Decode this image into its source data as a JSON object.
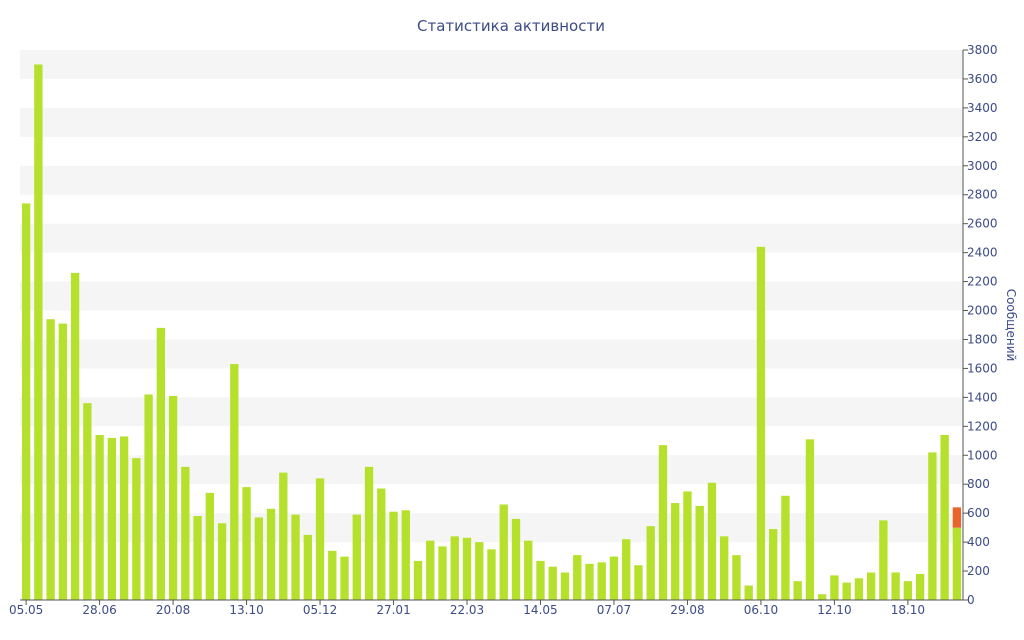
{
  "chart_data": {
    "type": "bar",
    "title": "Статистика активности",
    "ylabel": "Сообщений",
    "xlabel": "",
    "ylim": [
      0,
      3800
    ],
    "y_ticks": [
      0,
      200,
      400,
      600,
      800,
      1000,
      1200,
      1400,
      1600,
      1800,
      2000,
      2200,
      2400,
      2600,
      2800,
      3000,
      3200,
      3400,
      3600,
      3800
    ],
    "y_axis_position": "right",
    "grid": "alternating horizontal bands",
    "x_tick_labels": [
      "05.05",
      "28.06",
      "20.08",
      "13.10",
      "05.12",
      "27.01",
      "22.03",
      "14.05",
      "07.07",
      "29.08",
      "06.10",
      "12.10",
      "18.10"
    ],
    "colors": {
      "bar": "#b5e02b",
      "highlight": "#e8642c",
      "text": "#3d4b86",
      "band": "#f5f5f5",
      "axis": "#555555"
    },
    "values": [
      2740,
      3700,
      1940,
      1910,
      2260,
      1360,
      1140,
      1120,
      1130,
      980,
      1420,
      1880,
      1410,
      920,
      580,
      740,
      530,
      1630,
      780,
      570,
      630,
      880,
      590,
      450,
      840,
      340,
      300,
      590,
      920,
      770,
      610,
      620,
      270,
      410,
      370,
      440,
      430,
      400,
      350,
      660,
      560,
      410,
      270,
      230,
      190,
      310,
      250,
      260,
      300,
      420,
      240,
      510,
      1070,
      670,
      750,
      650,
      810,
      440,
      310,
      100,
      2440,
      490,
      720,
      130,
      1110,
      40,
      170,
      120,
      150,
      190,
      550,
      190,
      130,
      180,
      1020,
      1140,
      640
    ],
    "highlight_last": true,
    "highlight_lower": 500
  }
}
